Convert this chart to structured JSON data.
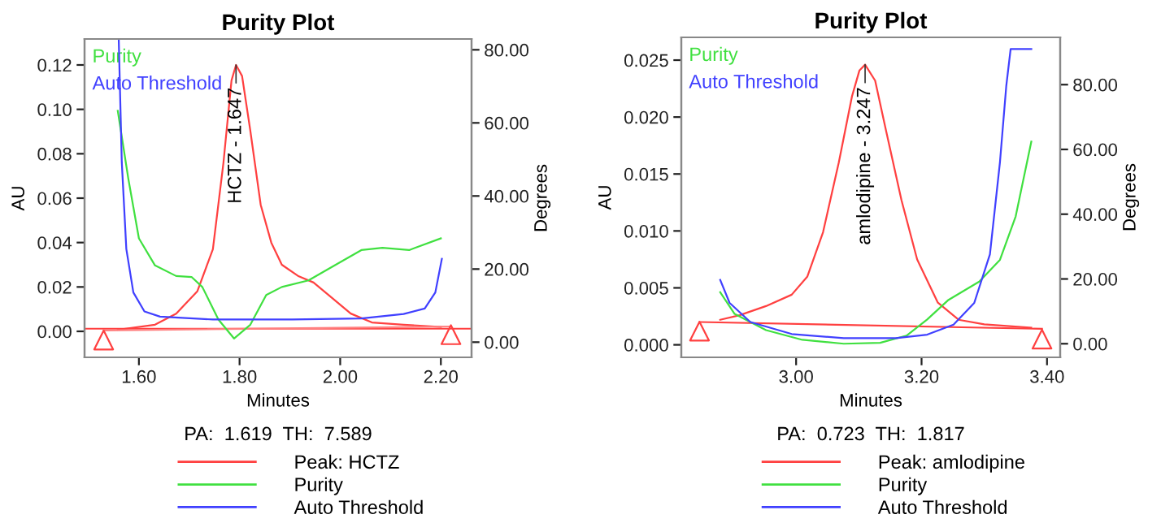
{
  "chart_data": [
    {
      "type": "line",
      "title": "Purity Plot",
      "xlabel": "Minutes",
      "ylabel": "AU",
      "y2label": "Degrees",
      "xlim": [
        1.492,
        2.261
      ],
      "xticks": [
        {
          "value": 1.6,
          "label": "1.60"
        },
        {
          "value": 1.8,
          "label": "1.80"
        },
        {
          "value": 2.0,
          "label": "2.00"
        },
        {
          "value": 2.2,
          "label": "2.20"
        }
      ],
      "ylim": [
        -0.0117,
        0.1317
      ],
      "yticks": [
        {
          "value": 0,
          "label": "0.00"
        },
        {
          "value": 0.02,
          "label": "0.02"
        },
        {
          "value": 0.04,
          "label": "0.04"
        },
        {
          "value": 0.06,
          "label": "0.06"
        },
        {
          "value": 0.08,
          "label": "0.08"
        },
        {
          "value": 0.1,
          "label": "0.10"
        },
        {
          "value": 0.12,
          "label": "0.12"
        }
      ],
      "y2lim": [
        -4.15,
        82.96
      ],
      "y2ticks": [
        {
          "value": 0,
          "label": "0.00"
        },
        {
          "value": 20,
          "label": "20.00"
        },
        {
          "value": 40,
          "label": "40.00"
        },
        {
          "value": 60,
          "label": "60.00"
        },
        {
          "value": 80,
          "label": "80.00"
        }
      ],
      "legend": "bottom",
      "grid": false,
      "ref_lines": [
        {
          "axis": "y",
          "value": 0.0012,
          "color": "#ff4040"
        }
      ],
      "annotations": [
        "Purity",
        "Auto Threshold",
        "PA:  1.619  TH:  7.589",
        {
          "text": "HCTZ - 1.647",
          "x": 1.793,
          "y": 0.12
        }
      ],
      "series": [
        {
          "name": "Peak: HCTZ",
          "color": "#ff4040",
          "x": [
            1.558,
            1.632,
            1.674,
            1.716,
            1.747,
            1.768,
            1.784,
            1.793,
            1.805,
            1.821,
            1.842,
            1.863,
            1.884,
            1.916,
            1.947,
            1.979,
            2.021,
            2.063,
            2.126,
            2.2
          ],
          "values": [
            0.0007,
            0.003,
            0.008,
            0.018,
            0.037,
            0.076,
            0.113,
            0.12,
            0.115,
            0.091,
            0.057,
            0.04,
            0.03,
            0.025,
            0.022,
            0.016,
            0.008,
            0.004,
            0.003,
            0.002
          ]
        },
        {
          "name": "Purity",
          "color": "#40e040",
          "axis": "y2",
          "x": [
            1.558,
            1.579,
            1.6,
            1.632,
            1.674,
            1.705,
            1.726,
            1.758,
            1.789,
            1.821,
            1.853,
            1.884,
            1.937,
            1.989,
            2.042,
            2.084,
            2.137,
            2.2
          ],
          "values": [
            63.3,
            44.7,
            28.4,
            21.0,
            18.1,
            17.8,
            15.1,
            6.2,
            1.0,
            4.7,
            12.9,
            15.1,
            16.9,
            21.0,
            25.2,
            25.8,
            25.2,
            28.4
          ]
        },
        {
          "name": "Auto Threshold",
          "color": "#4040ff",
          "axis": "y2",
          "x": [
            1.56,
            1.566,
            1.575,
            1.589,
            1.611,
            1.642,
            1.747,
            1.905,
            2.042,
            2.126,
            2.168,
            2.189,
            2.202
          ],
          "values": [
            82.5,
            49.2,
            25.5,
            13.6,
            8.4,
            7.0,
            6.2,
            6.2,
            6.5,
            7.7,
            9.2,
            13.6,
            22.8
          ]
        },
        {
          "color": "#ff8080",
          "x": [
            1.53,
            2.22
          ],
          "values": [
            0.0004,
            0.0022
          ]
        },
        {
          "type": "scatter",
          "marker": "triangle",
          "color": "#ff4040",
          "x": [
            1.53,
            2.22
          ],
          "values": [
            -0.0039,
            -0.0015
          ]
        }
      ]
    },
    {
      "type": "line",
      "title": "Purity Plot",
      "xlabel": "Minutes",
      "ylabel": "AU",
      "y2label": "Degrees",
      "xlim": [
        2.817,
        3.421
      ],
      "xticks": [
        {
          "value": 3.0,
          "label": "3.00"
        },
        {
          "value": 3.2,
          "label": "3.20"
        },
        {
          "value": 3.4,
          "label": "3.40"
        }
      ],
      "ylim": [
        -0.0011,
        0.027
      ],
      "yticks": [
        {
          "value": 0,
          "label": "0.000"
        },
        {
          "value": 0.005,
          "label": "0.005"
        },
        {
          "value": 0.01,
          "label": "0.010"
        },
        {
          "value": 0.015,
          "label": "0.015"
        },
        {
          "value": 0.02,
          "label": "0.020"
        },
        {
          "value": 0.025,
          "label": "0.025"
        }
      ],
      "y2lim": [
        -4.2,
        94.6
      ],
      "y2ticks": [
        {
          "value": 0,
          "label": "0.00"
        },
        {
          "value": 20,
          "label": "20.00"
        },
        {
          "value": 40,
          "label": "40.00"
        },
        {
          "value": 60,
          "label": "60.00"
        },
        {
          "value": 80,
          "label": "80.00"
        }
      ],
      "legend": "bottom",
      "grid": false,
      "annotations": [
        "Purity",
        "Auto Threshold",
        "PA:  0.723  TH:  1.817",
        {
          "text": "amlodipine - 3.247",
          "x": 3.11,
          "y": 0.0246
        }
      ],
      "series": [
        {
          "name": "Peak: amlodipine",
          "color": "#ff4040",
          "x": [
            2.879,
            2.91,
            2.952,
            2.993,
            3.018,
            3.043,
            3.068,
            3.089,
            3.101,
            3.11,
            3.126,
            3.143,
            3.168,
            3.193,
            3.226,
            3.259,
            3.3,
            3.375
          ],
          "values": [
            0.0022,
            0.0026,
            0.0034,
            0.0044,
            0.006,
            0.0099,
            0.016,
            0.0218,
            0.0241,
            0.0246,
            0.0232,
            0.0189,
            0.0127,
            0.0075,
            0.0037,
            0.0022,
            0.0018,
            0.0015
          ]
        },
        {
          "name": "Purity",
          "color": "#40e040",
          "axis": "y2",
          "x": [
            2.879,
            2.902,
            2.952,
            3.01,
            3.076,
            3.134,
            3.176,
            3.209,
            3.242,
            3.292,
            3.325,
            3.35,
            3.375
          ],
          "values": [
            15.9,
            9.2,
            4.2,
            1.2,
            0,
            0.3,
            2.5,
            7.5,
            13.4,
            19.2,
            25.9,
            39.3,
            62.4
          ]
        },
        {
          "name": "Auto Threshold",
          "color": "#4040ff",
          "axis": "y2",
          "x": [
            2.879,
            2.894,
            2.927,
            2.993,
            3.076,
            3.159,
            3.209,
            3.251,
            3.284,
            3.309,
            3.325,
            3.335,
            3.342,
            3.375
          ],
          "values": [
            19.7,
            12.6,
            6.7,
            3.0,
            1.7,
            1.7,
            2.8,
            5.9,
            12.6,
            27.6,
            56.1,
            79.5,
            91.0,
            91.0
          ]
        },
        {
          "color": "#ff4040",
          "x": [
            2.846,
            3.392
          ],
          "values": [
            0.002,
            0.0014
          ]
        },
        {
          "type": "scatter",
          "marker": "triangle",
          "color": "#ff4040",
          "x": [
            2.846,
            3.392
          ],
          "values": [
            0.0012,
            0.0005
          ]
        }
      ]
    }
  ]
}
